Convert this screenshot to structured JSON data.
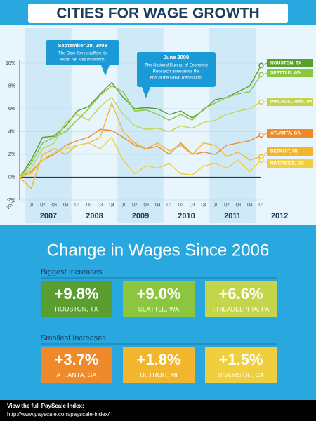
{
  "chart_data": {
    "type": "line",
    "title": "CITIES FOR WAGE GROWTH",
    "categories": [
      "2006",
      "Q1",
      "Q2",
      "Q3",
      "Q4",
      "Q1",
      "Q2",
      "Q3",
      "Q4",
      "Q1",
      "Q2",
      "Q3",
      "Q4",
      "Q1",
      "Q2",
      "Q3",
      "Q4",
      "Q1",
      "Q2",
      "Q3",
      "Q4",
      "Q1"
    ],
    "year_groups": [
      {
        "label": "2007",
        "span": 4
      },
      {
        "label": "2008",
        "span": 4
      },
      {
        "label": "2009",
        "span": 4
      },
      {
        "label": "2010",
        "span": 4
      },
      {
        "label": "2011",
        "span": 4
      },
      {
        "label": "2012",
        "span": 1
      }
    ],
    "series": [
      {
        "name": "HOUSTON, TX",
        "color": "#5a9e2f",
        "values": [
          0,
          1.5,
          3.5,
          3.6,
          4.5,
          5.8,
          6.2,
          7.3,
          8.3,
          7.0,
          6.0,
          6.1,
          6.0,
          5.5,
          5.8,
          5.2,
          5.9,
          6.8,
          7.0,
          7.5,
          8.0,
          9.8
        ]
      },
      {
        "name": "SEATTLE, WA",
        "color": "#8cc63f",
        "values": [
          0,
          1.2,
          3.0,
          3.5,
          4.0,
          5.0,
          6.0,
          7.2,
          8.0,
          7.5,
          5.8,
          5.9,
          5.5,
          5.0,
          5.5,
          5.0,
          6.0,
          6.5,
          7.0,
          7.3,
          7.5,
          9.0
        ]
      },
      {
        "name": "PHILADELPHIA, PA",
        "color": "#c5d54b",
        "values": [
          0,
          0.8,
          2.5,
          3.0,
          4.8,
          5.5,
          5.0,
          6.2,
          7.0,
          5.5,
          4.5,
          4.2,
          4.3,
          4.0,
          4.5,
          4.3,
          4.8,
          5.0,
          5.5,
          5.8,
          6.0,
          6.6
        ]
      },
      {
        "name": "ATLANTA, GA",
        "color": "#ee8a2a",
        "values": [
          0,
          0.5,
          1.5,
          2.0,
          2.8,
          3.2,
          3.5,
          4.2,
          4.1,
          3.5,
          2.8,
          2.5,
          2.7,
          2.0,
          3.0,
          2.0,
          2.2,
          2.0,
          2.8,
          3.0,
          3.2,
          3.7
        ]
      },
      {
        "name": "DETROIT, MI",
        "color": "#f2b62c",
        "values": [
          0,
          -1.0,
          2.0,
          2.5,
          2.0,
          2.8,
          3.0,
          3.5,
          6.5,
          4.0,
          3.0,
          2.5,
          3.0,
          2.3,
          2.8,
          2.0,
          3.0,
          2.8,
          1.8,
          2.2,
          1.5,
          1.8
        ]
      },
      {
        "name": "RIVERSIDE, CA",
        "color": "#f0cf3e",
        "values": [
          0,
          0.3,
          1.5,
          2.2,
          2.5,
          2.8,
          3.0,
          2.5,
          3.5,
          1.5,
          0.3,
          1.0,
          0.8,
          1.2,
          0.3,
          0.2,
          1.0,
          1.2,
          0.8,
          1.5,
          0.5,
          1.5
        ]
      }
    ],
    "ylim": [
      -2,
      10
    ],
    "yticks": [
      {
        "value": -2,
        "label": "-2%"
      },
      {
        "value": 0,
        "label": "0%"
      },
      {
        "value": 2,
        "label": "2%"
      },
      {
        "value": 4,
        "label": "4%"
      },
      {
        "value": 6,
        "label": "6%"
      },
      {
        "value": 8,
        "label": "8%"
      },
      {
        "value": 10,
        "label": "10%"
      }
    ],
    "grid": true,
    "annotations": [
      {
        "title": "September 29, 2008",
        "lines": [
          "The Dow Jones suffers its",
          "worst net loss in history."
        ]
      },
      {
        "title": "June 2009",
        "lines": [
          "The National Bureau of Economic",
          "Research announces the",
          "end of the Great Recession."
        ]
      }
    ]
  },
  "summary": {
    "title": "Change in Wages Since 2006",
    "groups": [
      {
        "label": "Biggest Increases",
        "items": [
          {
            "value": "+9.8%",
            "city": "HOUSTON, TX"
          },
          {
            "value": "+9.0%",
            "city": "SEATTLE, WA"
          },
          {
            "value": "+6.6%",
            "city": "PHILADELPHIA, PA"
          }
        ]
      },
      {
        "label": "Smallest Increases",
        "items": [
          {
            "value": "+3.7%",
            "city": "ATLANTA, GA"
          },
          {
            "value": "+1.8%",
            "city": "DETROIT, MI"
          },
          {
            "value": "+1.5%",
            "city": "RIVERSIDE, CA"
          }
        ]
      }
    ]
  },
  "footer": {
    "line1": "View the full PayScale Index:",
    "line2": "http://www.payscale.com/payscale-index/"
  }
}
